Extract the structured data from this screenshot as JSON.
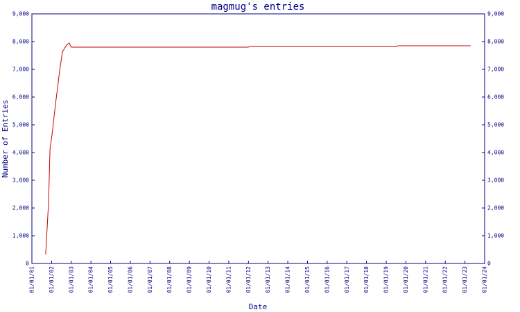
{
  "chart_data": {
    "type": "line",
    "title": "magmug's entries",
    "x_label": "Date",
    "y_label": "Number of Entries",
    "x": [
      2001.7,
      2001.85,
      2001.92,
      2002.02,
      2002.2,
      2002.42,
      2002.55,
      2002.76,
      2002.9,
      2003.0,
      2012.0,
      2012.05,
      2019.5,
      2019.6,
      2023.29
    ],
    "series": [
      {
        "name": "entries",
        "color": "#cc0000",
        "values": [
          325,
          2250,
          4125,
          4625,
          5750,
          7000,
          7625,
          7875,
          7950,
          7800,
          7800,
          7820,
          7820,
          7850,
          7850
        ]
      }
    ],
    "xlim": [
      2001,
      2024
    ],
    "xticks": [
      {
        "value": 2001,
        "label": "01/01/01"
      },
      {
        "value": 2002,
        "label": "01/01/02"
      },
      {
        "value": 2003,
        "label": "01/01/03"
      },
      {
        "value": 2004,
        "label": "01/01/04"
      },
      {
        "value": 2005,
        "label": "01/01/05"
      },
      {
        "value": 2006,
        "label": "01/01/06"
      },
      {
        "value": 2007,
        "label": "01/01/07"
      },
      {
        "value": 2008,
        "label": "01/01/08"
      },
      {
        "value": 2009,
        "label": "01/01/09"
      },
      {
        "value": 2010,
        "label": "01/01/10"
      },
      {
        "value": 2011,
        "label": "01/01/11"
      },
      {
        "value": 2012,
        "label": "01/01/12"
      },
      {
        "value": 2013,
        "label": "01/01/13"
      },
      {
        "value": 2014,
        "label": "01/01/14"
      },
      {
        "value": 2015,
        "label": "01/01/15"
      },
      {
        "value": 2016,
        "label": "01/01/16"
      },
      {
        "value": 2017,
        "label": "01/01/17"
      },
      {
        "value": 2018,
        "label": "01/01/18"
      },
      {
        "value": 2019,
        "label": "01/01/19"
      },
      {
        "value": 2020,
        "label": "01/01/20"
      },
      {
        "value": 2021,
        "label": "01/01/21"
      },
      {
        "value": 2022,
        "label": "01/01/22"
      },
      {
        "value": 2023,
        "label": "01/01/23"
      },
      {
        "value": 2024,
        "label": "01/01/24"
      }
    ],
    "ylim": [
      0,
      9000
    ],
    "yticks": [
      0,
      {
        "value": 1000,
        "label": "1,000"
      },
      {
        "value": 2000,
        "label": "2,000"
      },
      {
        "value": 3000,
        "label": "3,000"
      },
      {
        "value": 4000,
        "label": "4,000"
      },
      {
        "value": 5000,
        "label": "5,000"
      },
      {
        "value": 6000,
        "label": "6,000"
      },
      {
        "value": 7000,
        "label": "7,000"
      },
      {
        "value": 8000,
        "label": "8,000"
      },
      {
        "value": 9000,
        "label": "9,000"
      }
    ]
  }
}
